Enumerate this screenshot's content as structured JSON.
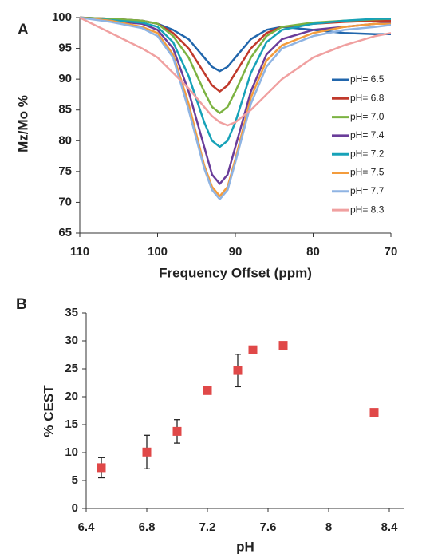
{
  "chart_data": [
    {
      "type": "line",
      "label": "A",
      "x_label": "Frequency Offset (ppm)",
      "y_label": "Mz/Mo %",
      "xlim": [
        110,
        70
      ],
      "xticks": [
        110,
        100,
        90,
        80,
        70
      ],
      "ylim": [
        65,
        100
      ],
      "yticks": [
        65,
        70,
        75,
        80,
        85,
        90,
        95,
        100
      ],
      "legend": "right",
      "x": [
        110,
        106,
        102,
        100,
        98,
        96,
        94,
        93,
        92,
        91,
        90,
        88,
        86,
        84,
        80,
        76,
        72,
        70
      ],
      "series": [
        {
          "name": "pH= 6.5",
          "color": "#2166ac",
          "values": [
            100,
            99.8,
            99.5,
            99,
            98,
            96.5,
            93.5,
            92,
            91.3,
            92,
            93.5,
            96.5,
            98,
            98.5,
            98,
            97.5,
            97.3,
            97.3
          ]
        },
        {
          "name": "pH= 6.8",
          "color": "#c0392b",
          "values": [
            100,
            99.8,
            99.5,
            99,
            97.5,
            95,
            91,
            89,
            88,
            89,
            91,
            95,
            97.5,
            98.5,
            99,
            99.3,
            99.5,
            99.5
          ]
        },
        {
          "name": "pH= 7.0",
          "color": "#7cb342",
          "values": [
            100,
            99.8,
            99.5,
            99,
            97,
            93.5,
            88,
            85.5,
            84.5,
            85.5,
            88,
            93.5,
            97,
            98.5,
            99.2,
            99.5,
            99.7,
            99.8
          ]
        },
        {
          "name": "pH= 7.4",
          "color": "#6a3d9a",
          "values": [
            100,
            99.5,
            99,
            98,
            95,
            88,
            79,
            74.5,
            73,
            74.5,
            79,
            88,
            94,
            96.5,
            98,
            98.5,
            99,
            99.2
          ]
        },
        {
          "name": "pH= 7.2",
          "color": "#17a2b8",
          "values": [
            100,
            99.6,
            99.2,
            98.5,
            96,
            90.5,
            83,
            80,
            79,
            80,
            83,
            91,
            96,
            98,
            99,
            99.5,
            99.8,
            99.8
          ]
        },
        {
          "name": "pH= 7.5",
          "color": "#f39c3d",
          "values": [
            100,
            99.5,
            98.5,
            97.5,
            94,
            86,
            76,
            72.5,
            71,
            72.5,
            77,
            87,
            93,
            95.5,
            97.5,
            98.5,
            99,
            99
          ]
        },
        {
          "name": "pH= 7.7",
          "color": "#8fb4e3",
          "values": [
            100,
            99.3,
            98.3,
            97,
            93.5,
            85,
            75.5,
            72,
            70.5,
            72,
            76.5,
            86,
            92,
            95,
            97,
            98,
            98.5,
            98.8
          ]
        },
        {
          "name": "pH= 8.3",
          "color": "#f0a0a0",
          "values": [
            100,
            97.5,
            95,
            93.5,
            91,
            88.5,
            85.5,
            84,
            83,
            82.5,
            83,
            85,
            87.5,
            90,
            93.5,
            95.5,
            97,
            97.5
          ]
        }
      ]
    },
    {
      "type": "scatter",
      "label": "B",
      "x_label": "pH",
      "y_label": "% CEST",
      "xlim": [
        6.4,
        8.5
      ],
      "xticks": [
        6.4,
        6.8,
        7.2,
        7.6,
        8,
        8.4
      ],
      "ylim": [
        0,
        35
      ],
      "yticks": [
        0,
        5,
        10,
        15,
        20,
        25,
        30,
        35
      ],
      "color": "#e04848",
      "x": [
        6.5,
        6.8,
        7.0,
        7.2,
        7.4,
        7.5,
        7.7,
        8.3
      ],
      "values": [
        7.3,
        10.1,
        13.8,
        21.1,
        24.7,
        28.4,
        29.2,
        17.2
      ],
      "errors": [
        1.8,
        3,
        2.1,
        0,
        2.9,
        0,
        0,
        0
      ]
    }
  ]
}
